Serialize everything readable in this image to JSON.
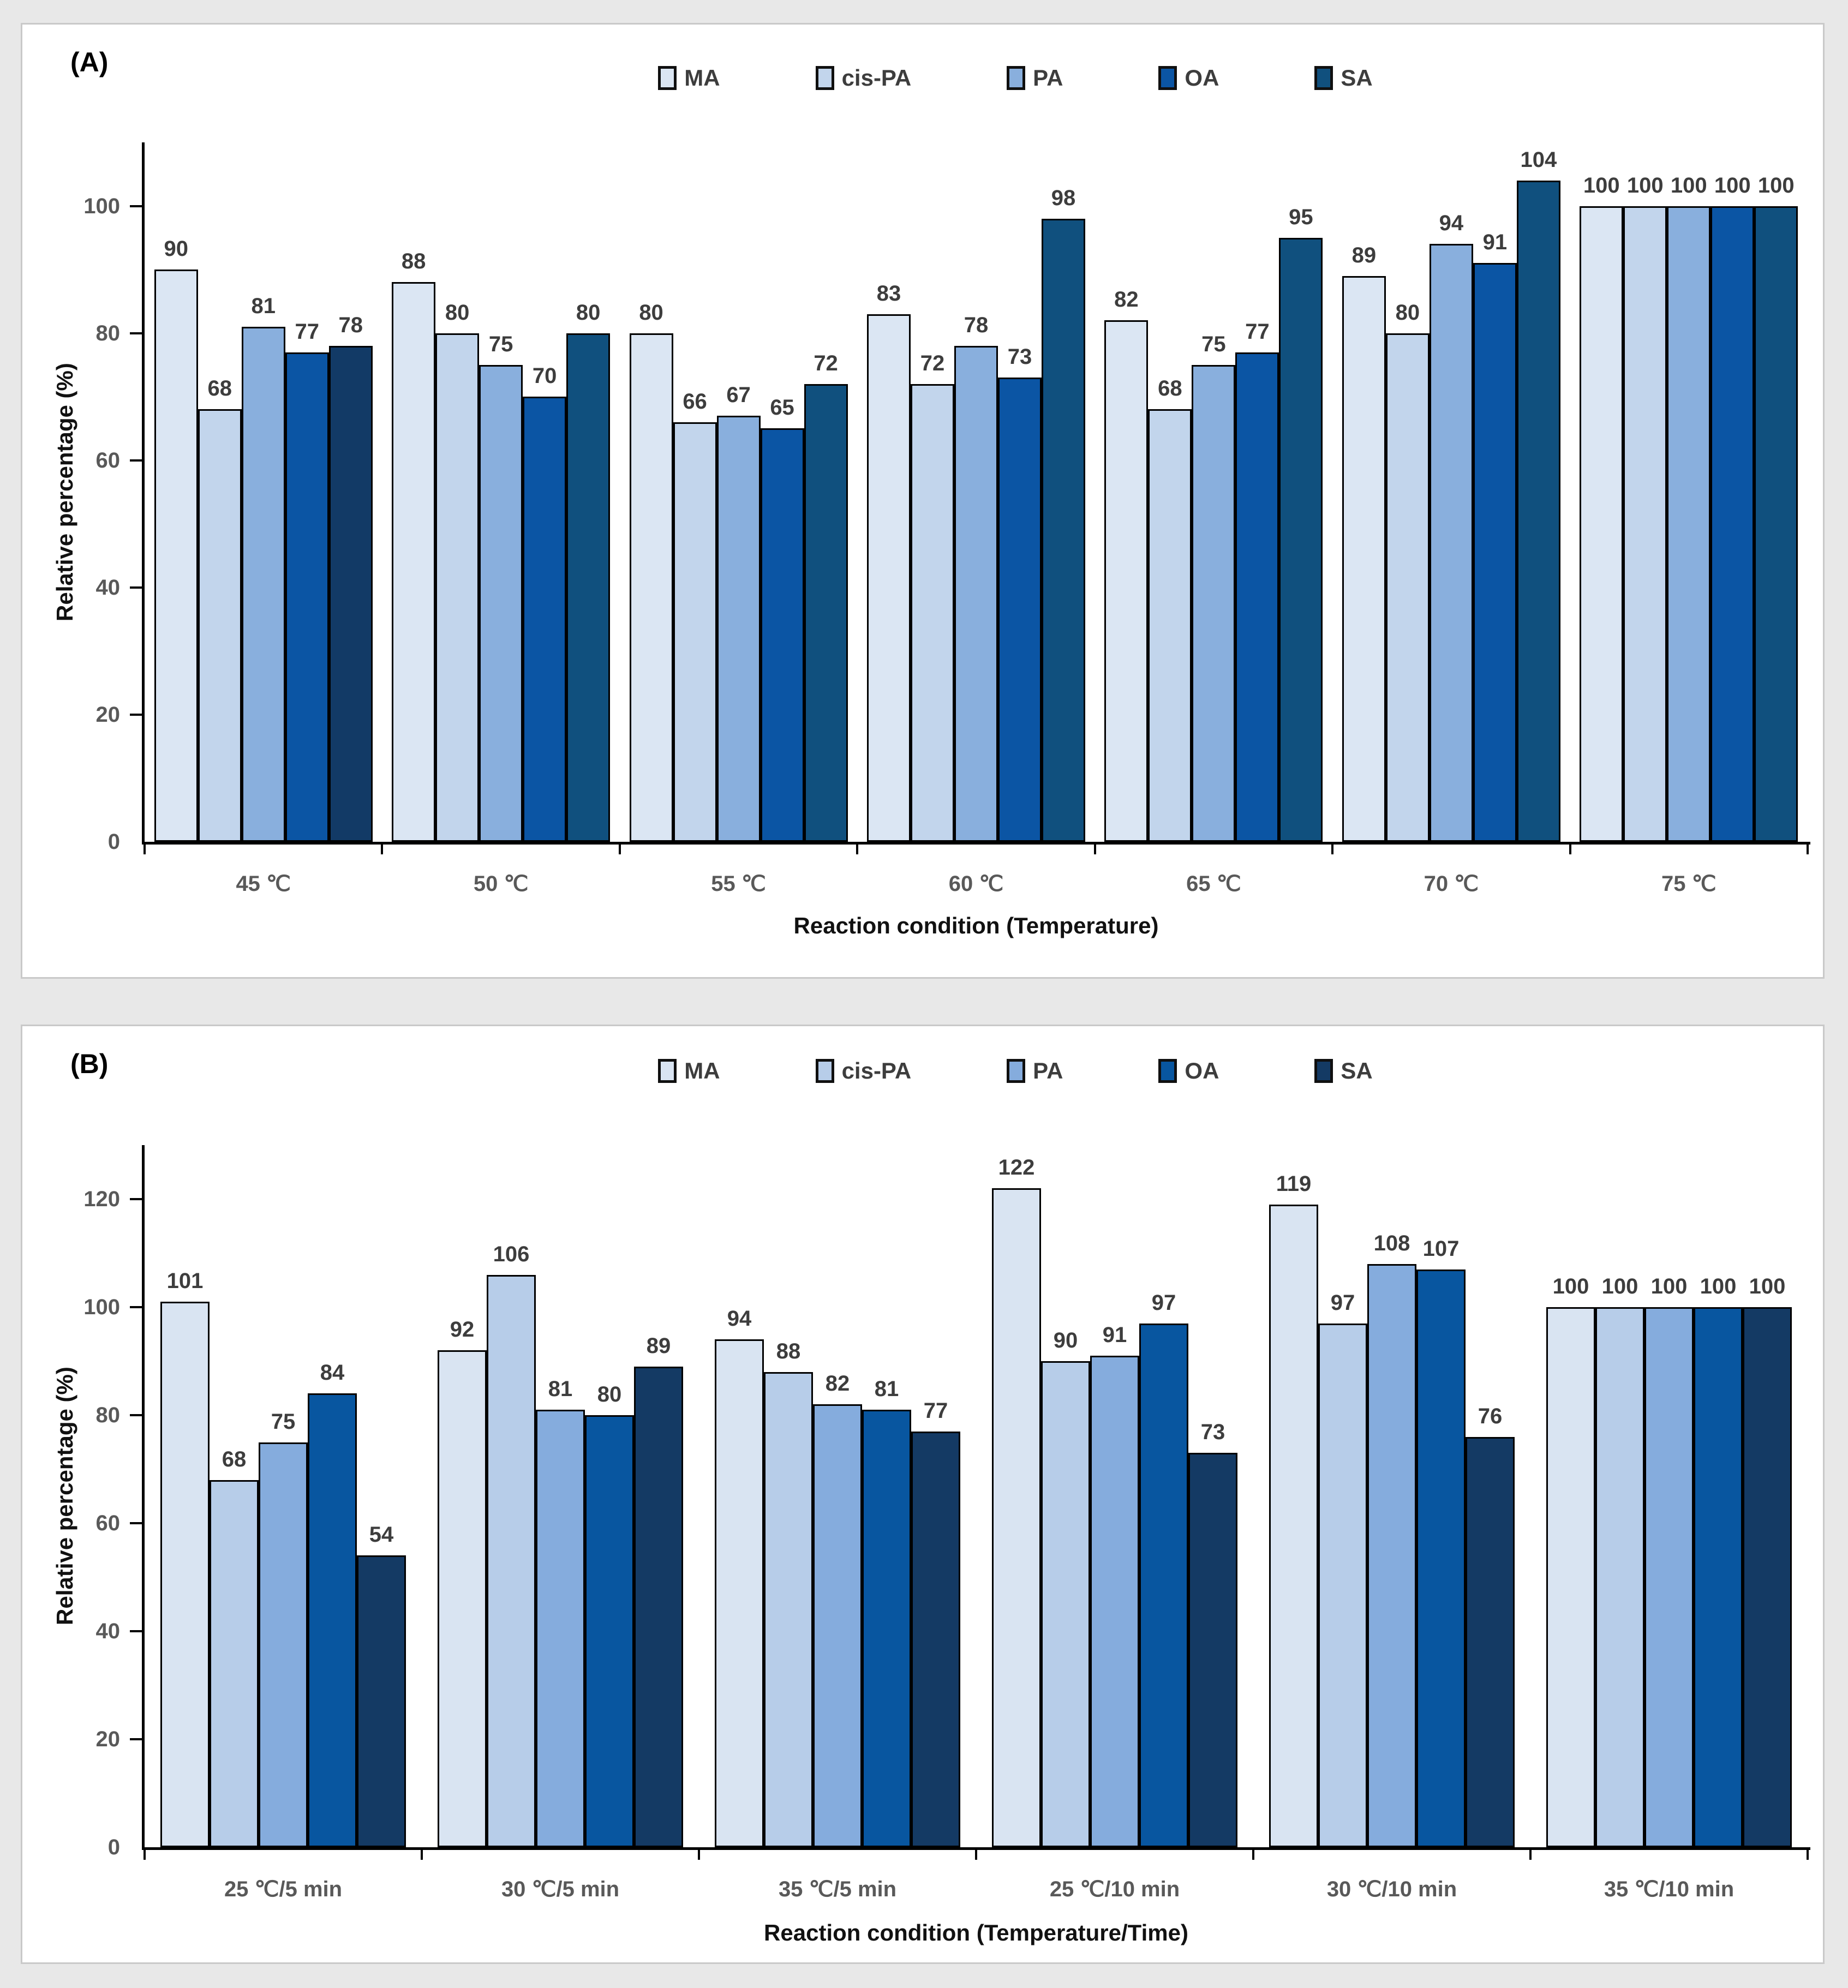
{
  "panels": [
    {
      "label": "(A)"
    },
    {
      "label": "(B)"
    }
  ],
  "chart_data": [
    {
      "type": "bar",
      "title": "",
      "xlabel": "Reaction condition (Temperature)",
      "ylabel": "Relative percentage (%)",
      "ylim": [
        0,
        110
      ],
      "yticks": [
        0,
        20,
        40,
        60,
        80,
        100
      ],
      "grid": "off",
      "legend_position": "top",
      "categories": [
        "45 ℃",
        "50 ℃",
        "55 ℃",
        "60 ℃",
        "65 ℃",
        "70 ℃",
        "75 ℃"
      ],
      "series": [
        {
          "name": "MA",
          "color": "#dbe6f3",
          "values": [
            90,
            88,
            80,
            83,
            82,
            89,
            100
          ]
        },
        {
          "name": "cis-PA",
          "color": "#c2d5ec",
          "values": [
            68,
            80,
            66,
            72,
            68,
            80,
            100
          ]
        },
        {
          "name": "PA",
          "color": "#89afdd",
          "values": [
            81,
            75,
            67,
            78,
            75,
            94,
            100
          ]
        },
        {
          "name": "OA",
          "color": "#0b55a4",
          "values": [
            77,
            70,
            65,
            73,
            77,
            91,
            100
          ]
        },
        {
          "name": "SA",
          "color": "#10507e",
          "values": [
            78,
            80,
            72,
            98,
            95,
            104,
            100
          ],
          "color_overrides": {
            "0": "#123a66"
          }
        }
      ]
    },
    {
      "type": "bar",
      "title": "",
      "xlabel": "Reaction condition (Temperature/Time)",
      "ylabel": "Relative percentage (%)",
      "ylim": [
        0,
        130
      ],
      "yticks": [
        0,
        20,
        40,
        60,
        80,
        100,
        120
      ],
      "grid": "off",
      "legend_position": "top",
      "categories": [
        "25 ℃/5 min",
        "30 ℃/5 min",
        "35 ℃/5 min",
        "25 ℃/10 min",
        "30 ℃/10 min",
        "35 ℃/10 min"
      ],
      "series": [
        {
          "name": "MA",
          "color": "#d9e4f2",
          "values": [
            101,
            92,
            94,
            122,
            119,
            100
          ]
        },
        {
          "name": "cis-PA",
          "color": "#b7cde9",
          "values": [
            68,
            106,
            88,
            90,
            97,
            100
          ]
        },
        {
          "name": "PA",
          "color": "#85acdd",
          "values": [
            75,
            81,
            82,
            91,
            108,
            100
          ]
        },
        {
          "name": "OA",
          "color": "#0856a0",
          "values": [
            84,
            80,
            81,
            97,
            107,
            100
          ]
        },
        {
          "name": "SA",
          "color": "#143a64",
          "values": [
            54,
            89,
            77,
            73,
            76,
            100
          ]
        }
      ]
    }
  ]
}
